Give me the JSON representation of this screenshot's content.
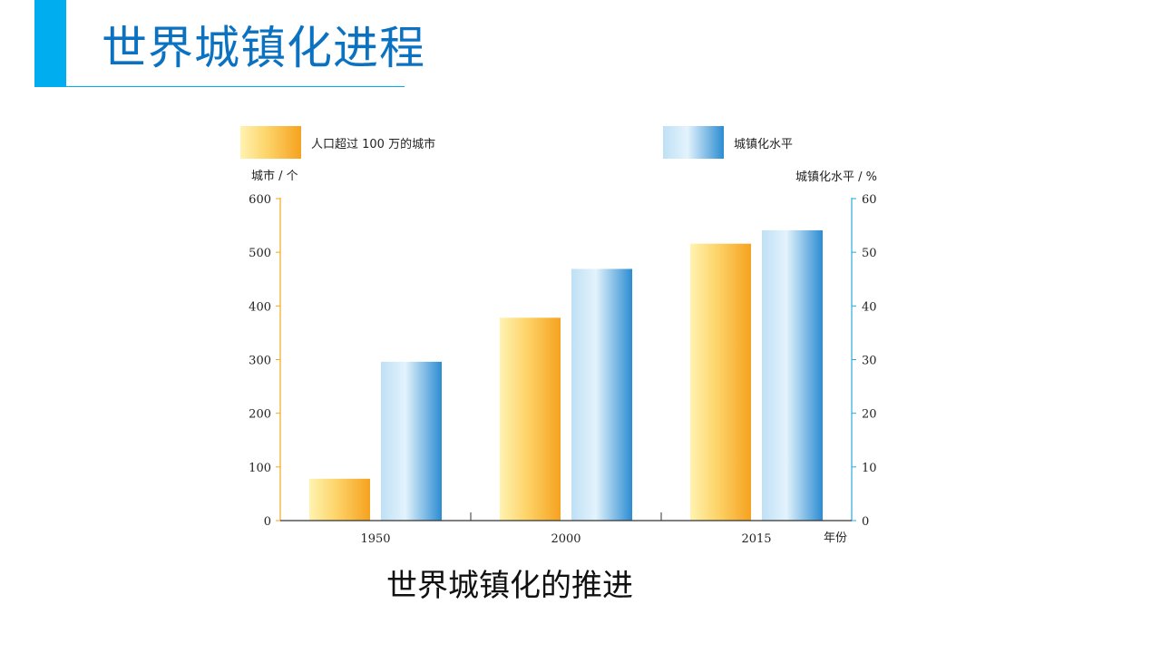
{
  "slide": {
    "title": "世界城镇化进程",
    "caption": "世界城镇化的推进",
    "accent_color": "#00aeef",
    "title_color": "#0b72c2"
  },
  "chart_data": {
    "type": "bar",
    "categories": [
      "1950",
      "2000",
      "2015"
    ],
    "series": [
      {
        "name": "人口超过 100 万的城市",
        "axis": "left",
        "values": [
          78,
          378,
          516
        ],
        "color": "#f6a623"
      },
      {
        "name": "城镇化水平",
        "axis": "right",
        "values": [
          29.6,
          46.9,
          54.1
        ],
        "color": "#2f8fd3"
      }
    ],
    "left_axis": {
      "label": "城市 / 个",
      "min": 0,
      "max": 600,
      "ticks": [
        0,
        100,
        200,
        300,
        400,
        500,
        600
      ]
    },
    "right_axis": {
      "label": "城镇化水平 / %",
      "min": 0,
      "max": 60,
      "ticks": [
        0,
        10,
        20,
        30,
        40,
        50,
        60
      ]
    },
    "xlabel": "年份",
    "grid": true,
    "legend": "top"
  }
}
